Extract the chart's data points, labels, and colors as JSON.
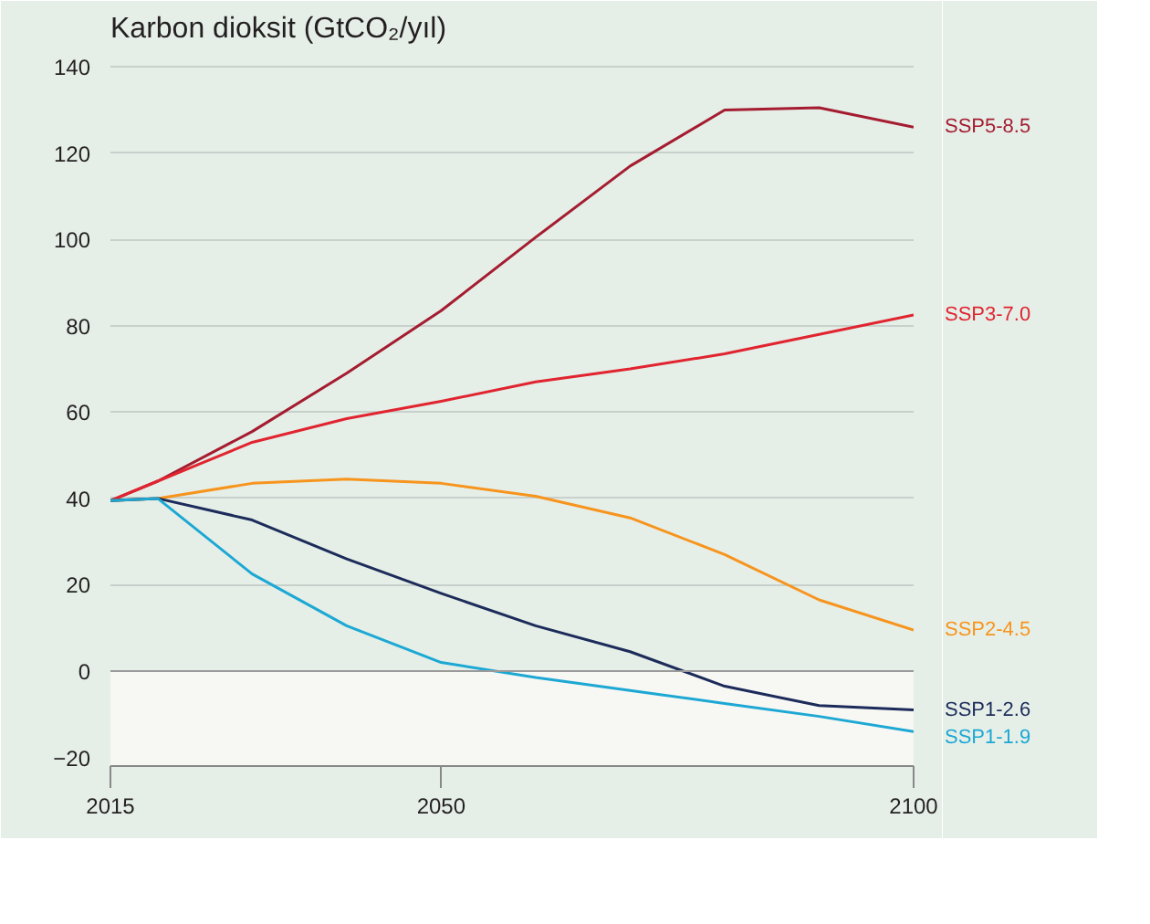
{
  "chart_data": {
    "type": "line",
    "title": "Karbon dioksit (GtCO₂/yıl)",
    "x": [
      2015,
      2020,
      2030,
      2040,
      2050,
      2060,
      2070,
      2080,
      2090,
      2100
    ],
    "series": [
      {
        "name": "SSP5-8.5",
        "color": "#a51c30",
        "values": [
          39.5,
          44,
          55.5,
          69,
          83.5,
          100.5,
          117,
          130,
          130.5,
          126
        ]
      },
      {
        "name": "SSP3-7.0",
        "color": "#e1242f",
        "values": [
          39.5,
          44,
          53,
          58.5,
          62.5,
          67,
          70,
          73.5,
          78,
          82.5
        ]
      },
      {
        "name": "SSP2-4.5",
        "color": "#f7941d",
        "values": [
          39.5,
          40,
          43.5,
          44.5,
          43.5,
          40.5,
          35.5,
          27,
          16.5,
          9.5
        ]
      },
      {
        "name": "SSP1-2.6",
        "color": "#1c2b5a",
        "values": [
          39.5,
          40,
          35,
          26,
          18,
          10.5,
          4.5,
          -3.5,
          -8,
          -9
        ]
      },
      {
        "name": "SSP1-1.9",
        "color": "#1da8d4",
        "values": [
          39.5,
          40,
          22.5,
          10.5,
          2,
          -1.5,
          -4.5,
          -7.5,
          -10.5,
          -14
        ]
      }
    ],
    "xlim": [
      2015,
      2100
    ],
    "ylim": [
      -22,
      143
    ],
    "xticks": [
      2015,
      2050,
      2100
    ],
    "yticks": [
      {
        "value": -20,
        "label": "−20"
      },
      0,
      20,
      40,
      60,
      80,
      100,
      120,
      140
    ],
    "bands": [
      {
        "axis": "y",
        "from": -22,
        "to": 0,
        "color": "#f7f7f4"
      }
    ],
    "ref_lines": [
      {
        "axis": "y",
        "value": 0,
        "color": "#9a9a9a"
      }
    ],
    "grid": "y",
    "line_style": "solid",
    "marker": "none"
  }
}
